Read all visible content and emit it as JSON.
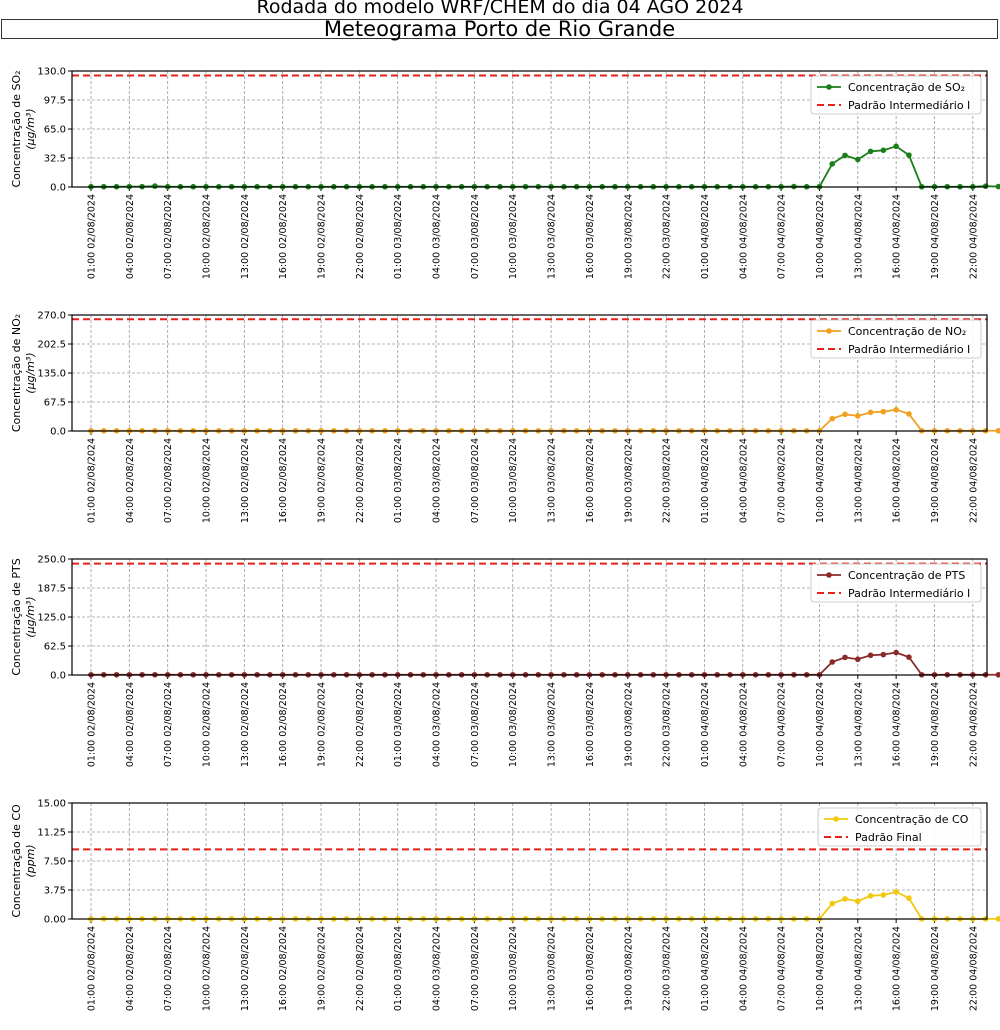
{
  "header": {
    "title": "Rodada do modelo WRF/CHEM do dia 04 AGO 2024",
    "subtitle": "Meteograma Porto de Rio Grande"
  },
  "x_tick_labels": [
    "01:00 02/08/2024",
    "04:00 02/08/2024",
    "07:00 02/08/2024",
    "10:00 02/08/2024",
    "13:00 02/08/2024",
    "16:00 02/08/2024",
    "19:00 02/08/2024",
    "22:00 02/08/2024",
    "01:00 03/08/2024",
    "04:00 03/08/2024",
    "07:00 03/08/2024",
    "10:00 03/08/2024",
    "13:00 03/08/2024",
    "16:00 03/08/2024",
    "19:00 03/08/2024",
    "22:00 03/08/2024",
    "01:00 04/08/2024",
    "04:00 04/08/2024",
    "07:00 04/08/2024",
    "10:00 04/08/2024",
    "13:00 04/08/2024",
    "16:00 04/08/2024",
    "19:00 04/08/2024",
    "22:00 04/08/2024"
  ],
  "chart_data": [
    {
      "type": "line",
      "ylabel": "Concentração de SO₂",
      "yunit": "(µg/m³)",
      "ylim": [
        0,
        130
      ],
      "yticks": [
        "0.0",
        "32.5",
        "65.0",
        "97.5",
        "130.0"
      ],
      "color": "#1a7f1a",
      "grid": true,
      "legend_position": "top-right",
      "series": [
        {
          "name": "Concentração de SO₂",
          "values": [
            0.3,
            0.3,
            0.3,
            0.4,
            0.4,
            1.0,
            0.3,
            0.3,
            0.3,
            0.3,
            0.3,
            0.3,
            0.3,
            0.3,
            0.3,
            0.3,
            0.3,
            0.3,
            0.3,
            0.3,
            0.3,
            0.3,
            0.3,
            0.3,
            0.3,
            0.3,
            0.3,
            0.3,
            0.3,
            0.3,
            0.3,
            0.3,
            0.3,
            0.3,
            0.4,
            0.4,
            0.3,
            0.3,
            0.3,
            0.3,
            0.3,
            0.3,
            0.3,
            0.3,
            0.3,
            0.3,
            0.3,
            0.3,
            0.3,
            0.3,
            0.3,
            0.3,
            0.3,
            0.3,
            0.3,
            0.5,
            0.3,
            0.3,
            25.9,
            35.4,
            30.8,
            39.9,
            41.1,
            45.6,
            35.7,
            0.3,
            0.3,
            0.3,
            0.3,
            0.3,
            0.9,
            0.5,
            0.3,
            0.7,
            0.5,
            0.5,
            0.3,
            0.3,
            0.3,
            0.3
          ]
        }
      ],
      "threshold": {
        "name": "Padrão Intermediário I",
        "value": 125
      }
    },
    {
      "type": "line",
      "ylabel": "Concentração de NO₂",
      "yunit": "(µg/m³)",
      "ylim": [
        0,
        270
      ],
      "yticks": [
        "0.0",
        "67.5",
        "135.0",
        "202.5",
        "270.0"
      ],
      "color": "#f0a01e",
      "grid": true,
      "legend_position": "top-right",
      "series": [
        {
          "name": "Concentração de NO₂",
          "values": [
            0.5,
            0.5,
            0.5,
            0.5,
            0.5,
            0.5,
            0.5,
            0.5,
            0.5,
            0.5,
            0.5,
            0.5,
            0.5,
            0.5,
            0.5,
            0.5,
            0.5,
            0.5,
            0.5,
            0.5,
            0.5,
            0.5,
            0.5,
            0.5,
            0.5,
            0.5,
            0.5,
            0.5,
            0.5,
            0.5,
            0.5,
            0.5,
            0.5,
            0.5,
            0.5,
            0.5,
            0.5,
            0.5,
            0.5,
            0.5,
            0.5,
            0.5,
            0.5,
            0.5,
            0.5,
            0.5,
            0.5,
            0.5,
            0.5,
            0.5,
            0.5,
            0.5,
            0.5,
            0.5,
            0.5,
            0.5,
            0.5,
            0.5,
            28.8,
            38.8,
            35.3,
            43.4,
            45.0,
            49.6,
            39.7,
            0.5,
            0.5,
            0.5,
            0.5,
            0.5,
            0.5,
            0.5,
            0.5,
            0.5,
            0.5,
            0.5,
            0.5,
            0.5,
            0.5,
            0.5
          ]
        }
      ],
      "threshold": {
        "name": "Padrão Intermediário I",
        "value": 260
      }
    },
    {
      "type": "line",
      "ylabel": "Concentração de PTS",
      "yunit": "(µg/m³)",
      "ylim": [
        0,
        250
      ],
      "yticks": [
        "0.0",
        "62.5",
        "125.0",
        "187.5",
        "250.0"
      ],
      "color": "#8b2a2a",
      "grid": true,
      "legend_position": "top-right",
      "series": [
        {
          "name": "Concentração de PTS",
          "values": [
            0.5,
            0.5,
            0.5,
            0.5,
            0.5,
            0.5,
            0.5,
            0.5,
            0.5,
            0.5,
            0.5,
            0.5,
            0.5,
            0.5,
            0.5,
            0.5,
            0.5,
            0.5,
            0.5,
            0.5,
            0.5,
            0.5,
            0.5,
            0.5,
            0.5,
            0.5,
            0.5,
            0.5,
            0.5,
            0.5,
            0.5,
            0.5,
            0.5,
            0.5,
            0.5,
            0.5,
            0.5,
            0.5,
            0.5,
            0.5,
            0.5,
            0.5,
            0.5,
            0.5,
            0.5,
            0.5,
            0.5,
            0.5,
            0.5,
            0.5,
            0.5,
            0.5,
            0.5,
            0.5,
            0.5,
            0.5,
            0.5,
            0.5,
            28.0,
            38.0,
            34.0,
            42.5,
            44.0,
            48.5,
            38.5,
            0.5,
            0.5,
            0.5,
            0.5,
            0.5,
            0.5,
            0.5,
            0.5,
            0.5,
            0.5,
            0.5,
            0.5,
            0.5,
            0.5,
            0.5
          ]
        }
      ],
      "threshold": {
        "name": "Padrão Intermediário I",
        "value": 240
      }
    },
    {
      "type": "line",
      "ylabel": "Concentração de CO",
      "yunit": "(ppm)",
      "ylim": [
        0,
        15
      ],
      "yticks": [
        "0.00",
        "3.75",
        "7.50",
        "11.25",
        "15.00"
      ],
      "color": "#f2c80f",
      "grid": true,
      "legend_position": "top-right",
      "series": [
        {
          "name": "Concentração de CO",
          "values": [
            0.02,
            0.02,
            0.02,
            0.02,
            0.02,
            0.02,
            0.02,
            0.02,
            0.02,
            0.02,
            0.02,
            0.02,
            0.02,
            0.02,
            0.02,
            0.02,
            0.02,
            0.02,
            0.02,
            0.02,
            0.02,
            0.02,
            0.02,
            0.02,
            0.02,
            0.02,
            0.02,
            0.02,
            0.02,
            0.02,
            0.02,
            0.02,
            0.02,
            0.02,
            0.02,
            0.02,
            0.02,
            0.02,
            0.02,
            0.02,
            0.02,
            0.02,
            0.02,
            0.02,
            0.02,
            0.02,
            0.02,
            0.02,
            0.02,
            0.02,
            0.02,
            0.02,
            0.02,
            0.02,
            0.02,
            0.02,
            0.02,
            0.02,
            2.0,
            2.6,
            2.3,
            3.0,
            3.1,
            3.5,
            2.7,
            0.02,
            0.02,
            0.02,
            0.02,
            0.02,
            0.02,
            0.02,
            0.02,
            0.02,
            0.02,
            0.02,
            0.02,
            0.02,
            0.02,
            0.02
          ]
        }
      ],
      "threshold": {
        "name": "Padrão Final",
        "value": 9
      }
    }
  ]
}
